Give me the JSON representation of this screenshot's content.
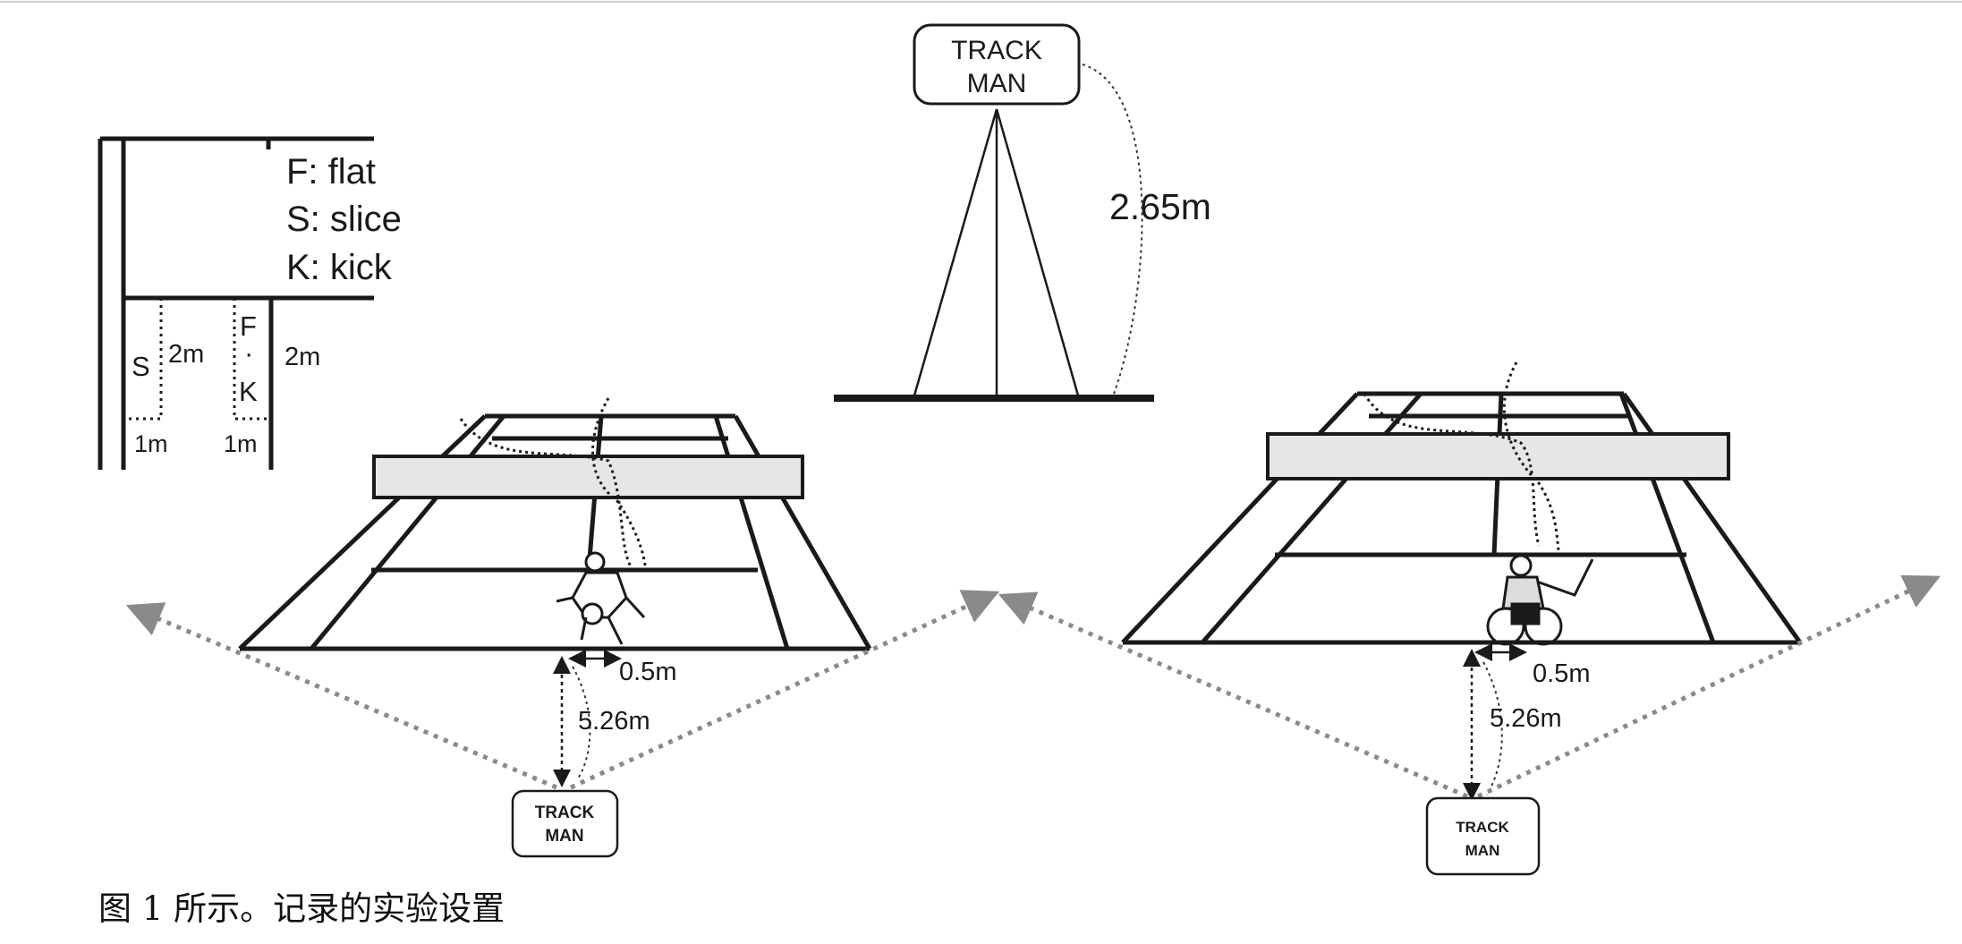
{
  "legend": {
    "flat": "F: flat",
    "slice": "S: slice",
    "kick": "K: kick"
  },
  "serve_zones": {
    "s_label": "S",
    "f_label": "F",
    "dot": "·",
    "k_label": "K",
    "length_left": "2m",
    "length_right": "2m",
    "width_left": "1m",
    "width_right": "1m"
  },
  "camera_mount": {
    "box_line1": "TRACK",
    "box_line2": "MAN",
    "height": "2.65m"
  },
  "court_left": {
    "offset": "0.5m",
    "distance": "5.26m",
    "box_line1": "TRACK",
    "box_line2": "MAN"
  },
  "court_right": {
    "offset": "0.5m",
    "distance": "5.26m",
    "box_line1": "TRACK",
    "box_line2": "MAN"
  },
  "caption": "图 1 所示。记录的实验设置",
  "colors": {
    "ink": "#1a1a1a",
    "dotted_arrow": "#8a8a8a",
    "net_fill": "#e6e6e6"
  }
}
